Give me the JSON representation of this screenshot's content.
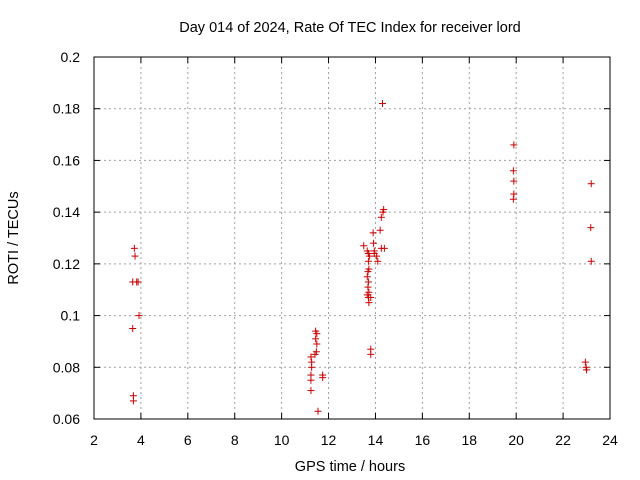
{
  "chart_data": {
    "type": "scatter",
    "title": "Day 014 of 2024, Rate Of TEC Index for receiver lord",
    "xlabel": "GPS time / hours",
    "ylabel": "ROTI / TECUs",
    "xlim": [
      2,
      24
    ],
    "ylim": [
      0.06,
      0.2
    ],
    "xticks": [
      2,
      4,
      6,
      8,
      10,
      12,
      14,
      16,
      18,
      20,
      22,
      24
    ],
    "yticks": [
      0.06,
      0.08,
      0.1,
      0.12,
      0.14,
      0.16,
      0.18,
      0.2
    ],
    "xtick_labels": [
      "2",
      "4",
      "6",
      "8",
      "10",
      "12",
      "14",
      "16",
      "18",
      "20",
      "22",
      "24"
    ],
    "ytick_labels": [
      "0.06",
      "0.08",
      "0.1",
      "0.12",
      "0.14",
      "0.16",
      "0.18",
      "0.2"
    ],
    "grid": true,
    "marker": "plus",
    "color": "#cc0000",
    "points": [
      [
        3.72,
        0.126
      ],
      [
        3.75,
        0.123
      ],
      [
        3.65,
        0.113
      ],
      [
        3.82,
        0.113
      ],
      [
        3.88,
        0.113
      ],
      [
        3.92,
        0.1
      ],
      [
        3.65,
        0.095
      ],
      [
        3.68,
        0.069
      ],
      [
        3.68,
        0.067
      ],
      [
        11.25,
        0.084
      ],
      [
        11.28,
        0.082
      ],
      [
        11.28,
        0.08
      ],
      [
        11.25,
        0.077
      ],
      [
        11.25,
        0.075
      ],
      [
        11.25,
        0.071
      ],
      [
        11.45,
        0.094
      ],
      [
        11.5,
        0.093
      ],
      [
        11.45,
        0.091
      ],
      [
        11.5,
        0.089
      ],
      [
        11.48,
        0.086
      ],
      [
        11.42,
        0.085
      ],
      [
        11.75,
        0.077
      ],
      [
        11.75,
        0.076
      ],
      [
        11.55,
        0.063
      ],
      [
        13.5,
        0.127
      ],
      [
        13.65,
        0.125
      ],
      [
        13.7,
        0.124
      ],
      [
        13.75,
        0.123
      ],
      [
        13.7,
        0.121
      ],
      [
        13.72,
        0.118
      ],
      [
        13.68,
        0.117
      ],
      [
        13.65,
        0.115
      ],
      [
        13.7,
        0.113
      ],
      [
        13.68,
        0.111
      ],
      [
        13.72,
        0.109
      ],
      [
        13.65,
        0.108
      ],
      [
        13.7,
        0.107
      ],
      [
        13.72,
        0.105
      ],
      [
        13.8,
        0.107
      ],
      [
        13.8,
        0.087
      ],
      [
        13.8,
        0.085
      ],
      [
        13.9,
        0.132
      ],
      [
        13.92,
        0.128
      ],
      [
        13.95,
        0.125
      ],
      [
        13.95,
        0.124
      ],
      [
        14.05,
        0.123
      ],
      [
        14.1,
        0.121
      ],
      [
        14.2,
        0.133
      ],
      [
        14.25,
        0.138
      ],
      [
        14.32,
        0.14
      ],
      [
        14.35,
        0.141
      ],
      [
        14.3,
        0.182
      ],
      [
        14.25,
        0.126
      ],
      [
        14.38,
        0.126
      ],
      [
        19.9,
        0.166
      ],
      [
        19.88,
        0.156
      ],
      [
        19.9,
        0.152
      ],
      [
        19.9,
        0.147
      ],
      [
        19.88,
        0.145
      ],
      [
        22.95,
        0.082
      ],
      [
        22.98,
        0.08
      ],
      [
        23.0,
        0.079
      ],
      [
        23.2,
        0.151
      ],
      [
        23.18,
        0.134
      ],
      [
        23.2,
        0.121
      ]
    ]
  }
}
